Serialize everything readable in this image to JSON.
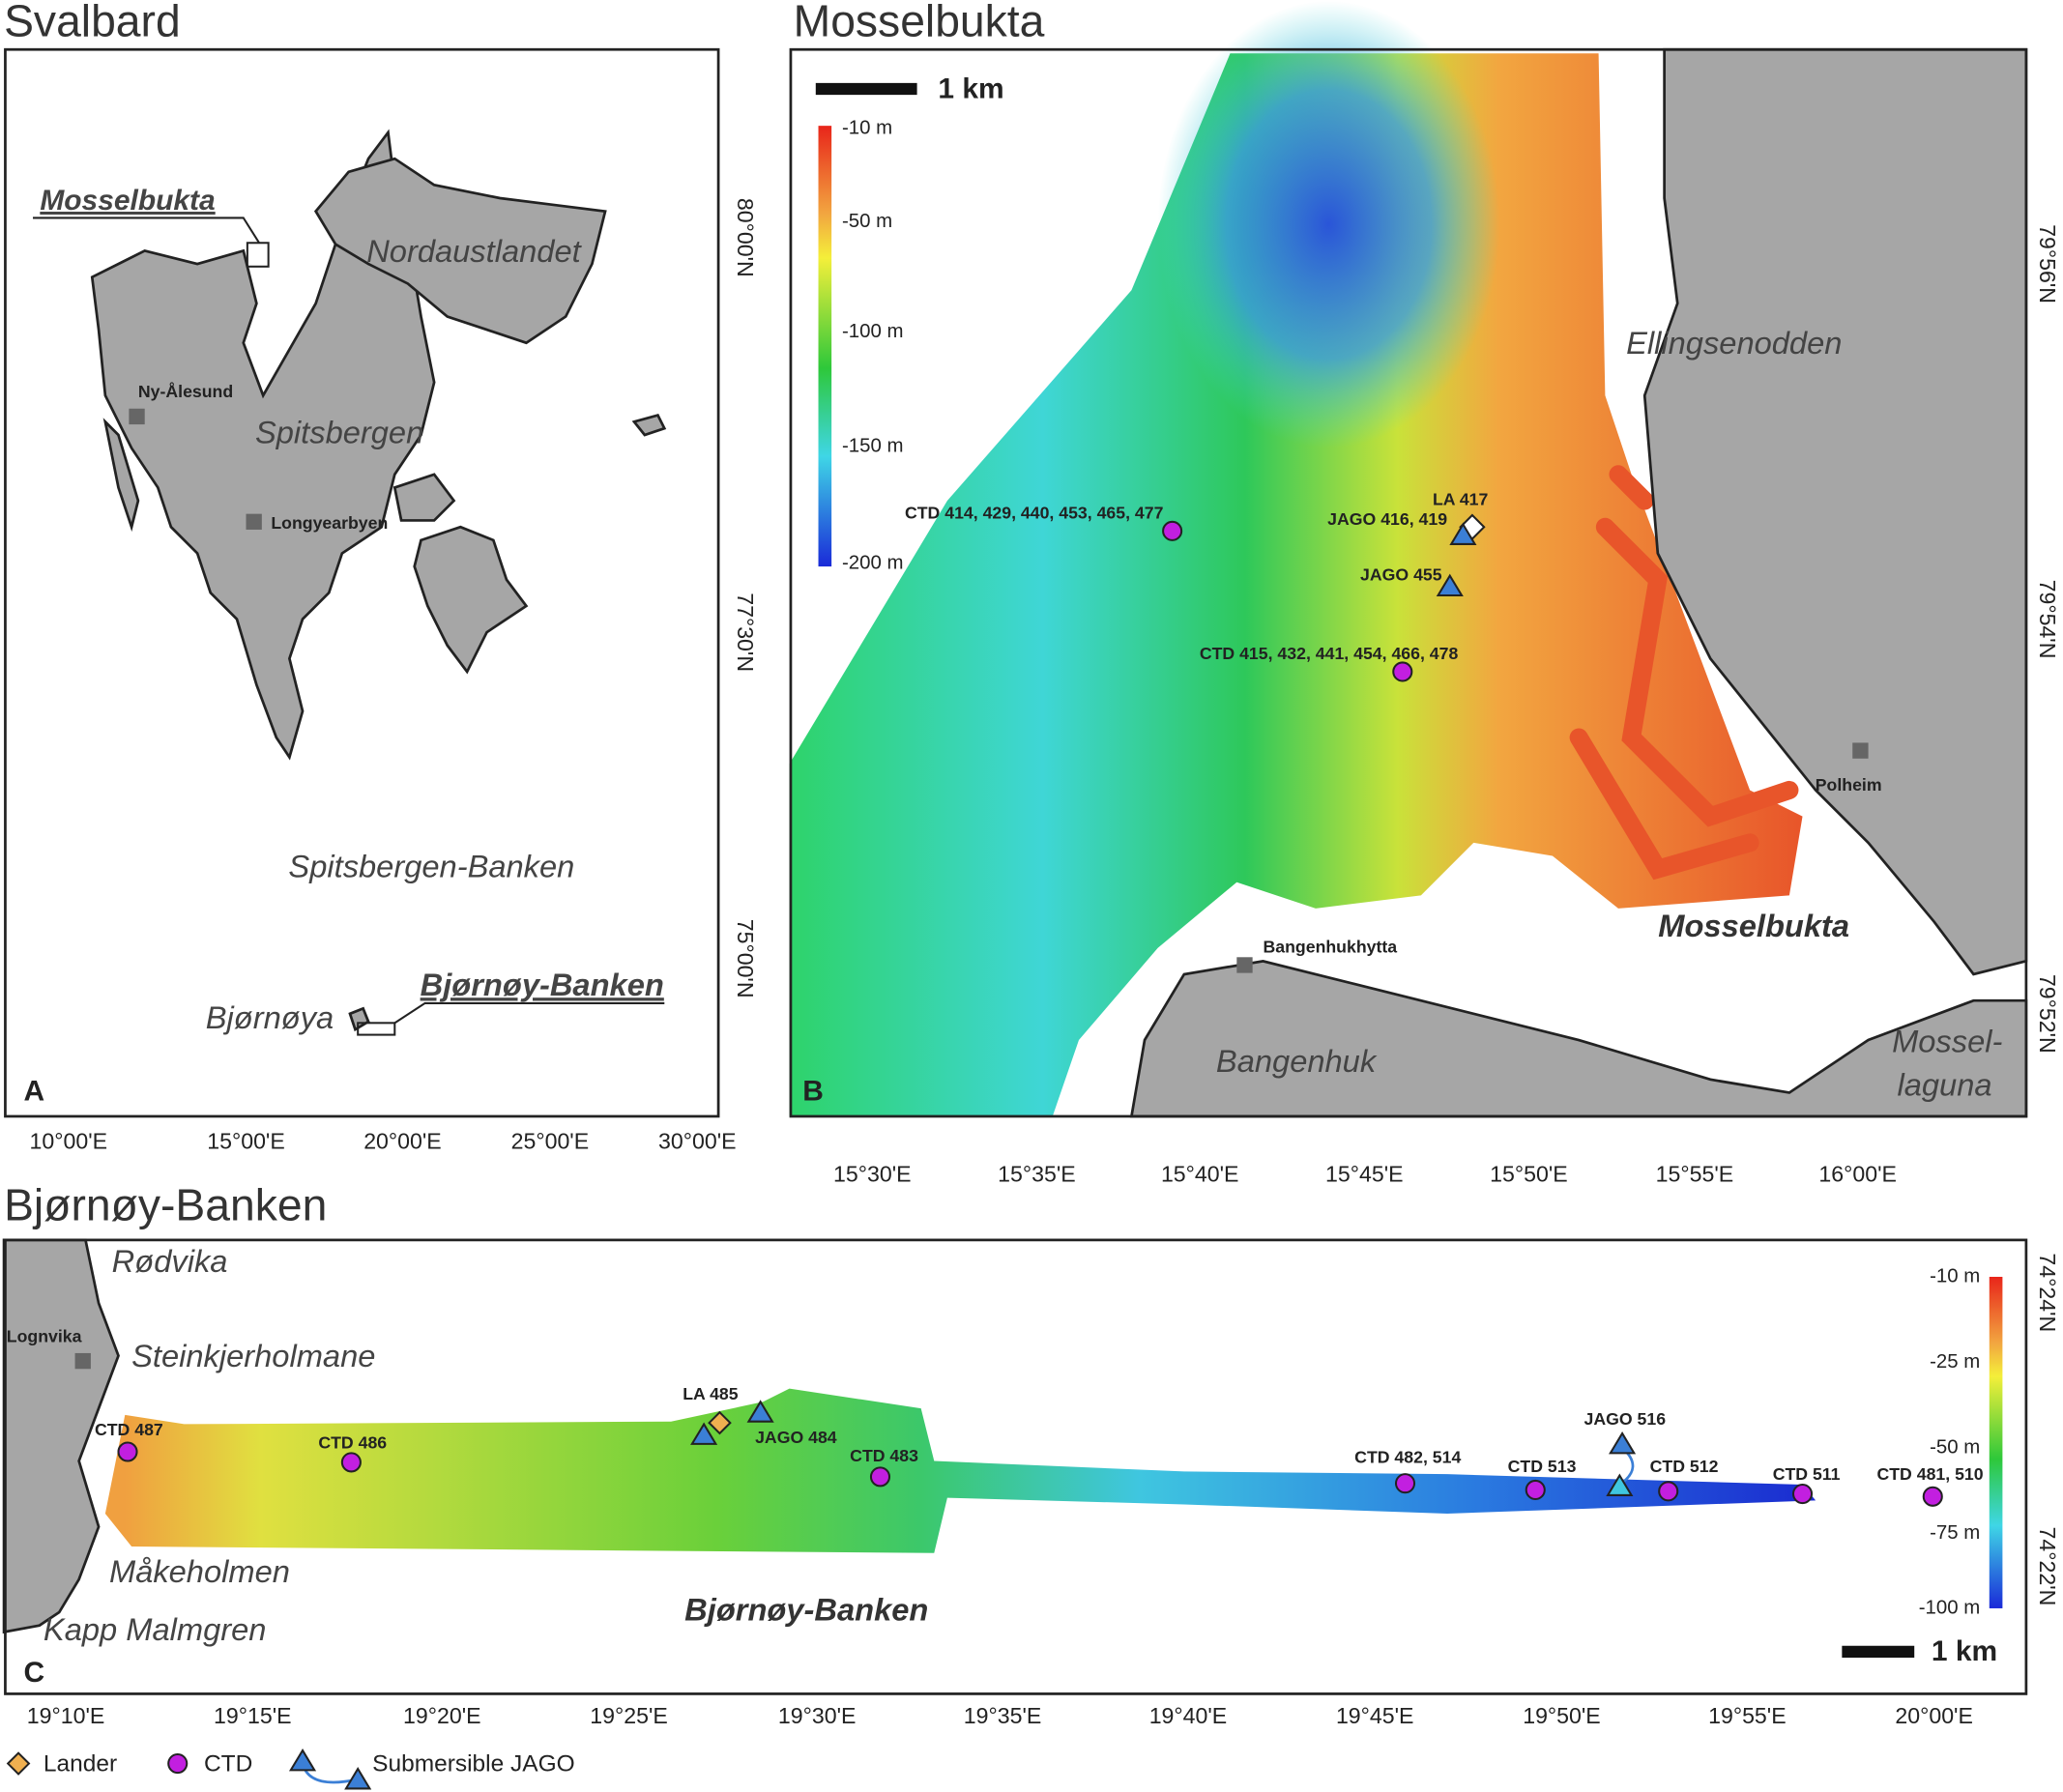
{
  "panel_a": {
    "title": "Svalbard",
    "letter": "A",
    "places": [
      "Mosselbukta",
      "Nordaustlandet",
      "Ny-Ålesund",
      "Spitsbergen",
      "Longyearbyen",
      "Spitsbergen-Banken",
      "Bjørnøy-Banken",
      "Bjørnøya"
    ],
    "x_axis": [
      "10°00'E",
      "15°00'E",
      "20°00'E",
      "25°00'E",
      "30°00'E"
    ],
    "y_axis": [
      "80°00'N",
      "77°30'N",
      "75°00'N"
    ]
  },
  "panel_b": {
    "title": "Mosselbukta",
    "letter": "B",
    "scale_bar": "1 km",
    "colorbar": [
      "-10 m",
      "-50 m",
      "-100 m",
      "-150 m",
      "-200 m"
    ],
    "stations": [
      "CTD 414, 429, 440, 453, 465, 477",
      "LA 417",
      "JAGO 416, 419",
      "JAGO 455",
      "CTD 415, 432, 441, 454, 466, 478"
    ],
    "places": [
      "Ellingsenodden",
      "Polheim",
      "Mosselbukta",
      "Bangenhukhytta",
      "Bangenhuk",
      "Mossel-",
      "laguna"
    ],
    "x_axis": [
      "15°30'E",
      "15°35'E",
      "15°40'E",
      "15°45'E",
      "15°50'E",
      "15°55'E",
      "16°00'E"
    ],
    "y_axis": [
      "79°56'N",
      "79°54'N",
      "79°52'N"
    ]
  },
  "panel_c": {
    "title": "Bjørnøy-Banken",
    "letter": "C",
    "scale_bar": "1 km",
    "colorbar": [
      "-10 m",
      "-25 m",
      "-50 m",
      "-75 m",
      "-100 m"
    ],
    "stations": [
      "CTD 487",
      "CTD 486",
      "LA 485",
      "JAGO 484",
      "CTD 483",
      "CTD 482, 514",
      "CTD 513",
      "JAGO 516",
      "CTD 512",
      "CTD 511",
      "CTD 481, 510"
    ],
    "places": [
      "Rødvika",
      "Lognvika",
      "Steinkjerholmane",
      "Måkeholmen",
      "Kapp Malmgren",
      "Bjørnøy-Banken"
    ],
    "x_axis": [
      "19°10'E",
      "19°15'E",
      "19°20'E",
      "19°25'E",
      "19°30'E",
      "19°35'E",
      "19°40'E",
      "19°45'E",
      "19°50'E",
      "19°55'E",
      "20°00'E"
    ],
    "y_axis": [
      "74°24'N",
      "74°22'N"
    ]
  },
  "legend": [
    "Lander",
    "CTD",
    "Submersible JAGO"
  ]
}
